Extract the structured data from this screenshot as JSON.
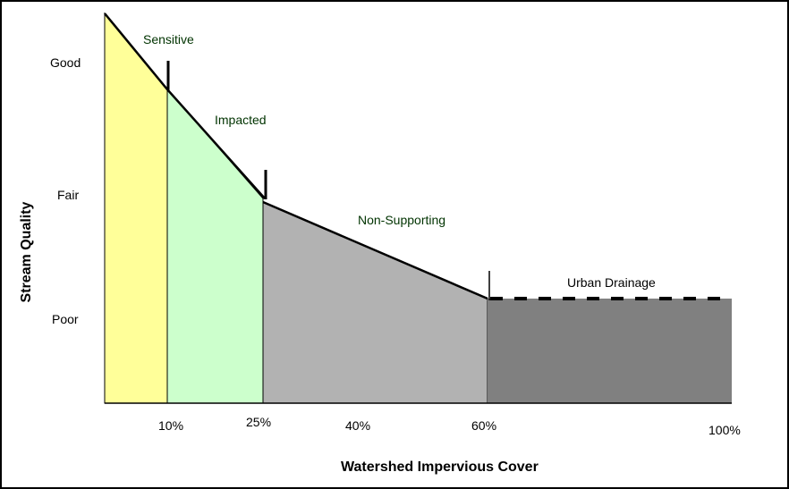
{
  "chart_data": {
    "type": "area",
    "xlabel": "Watershed Impervious Cover",
    "ylabel": "Stream Quality",
    "x_ticks": [
      "10%",
      "25%",
      "40%",
      "60%",
      "100%"
    ],
    "y_ticks": [
      "Good",
      "Fair",
      "Poor"
    ],
    "zones": [
      {
        "name": "Sensitive",
        "range": [
          0,
          10
        ],
        "color": "#ffff99"
      },
      {
        "name": "Impacted",
        "range": [
          10,
          25
        ],
        "color": "#ccffcc"
      },
      {
        "name": "Non-Supporting",
        "range": [
          25,
          60
        ],
        "color": "#b2b2b2"
      },
      {
        "name": "Urban Drainage",
        "range": [
          60,
          100
        ],
        "color": "#808080"
      }
    ]
  }
}
